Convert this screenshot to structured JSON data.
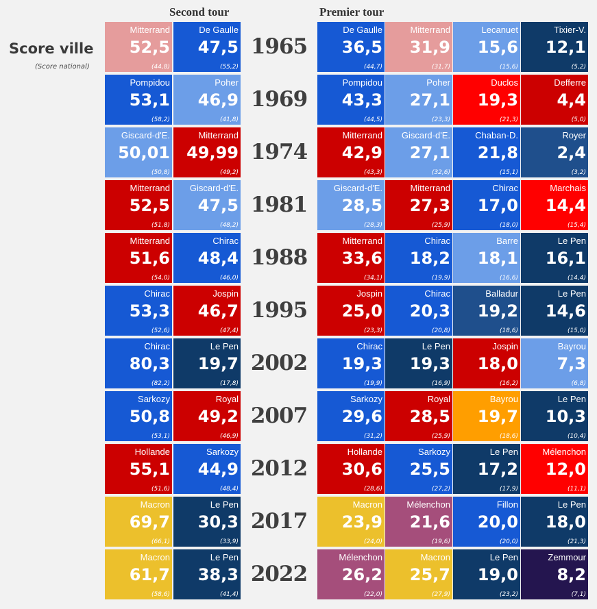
{
  "headers": {
    "second_round": "Second tour",
    "first_round": "Premier tour"
  },
  "legend": {
    "title": "Score ville",
    "subtitle": "(Score national)"
  },
  "colors": {
    "pink": "#e59c9c",
    "blue": "#1659d4",
    "lightblue": "#6c9ee8",
    "navy": "#0f3a68",
    "steelblue": "#1f4f8c",
    "darkred": "#cc0000",
    "brightred": "#ff0000",
    "orange": "#ff9e00",
    "yellow": "#ecc02c",
    "purple": "#a54e7b",
    "darkpurple": "#24154f"
  },
  "chart_data": {
    "type": "table",
    "title": "Score ville (Score national)",
    "rows": [
      {
        "year": "1965",
        "second_round": [
          {
            "name": "Mitterrand",
            "score": "52,5",
            "national": "(44,8)",
            "color": "pink"
          },
          {
            "name": "De Gaulle",
            "score": "47,5",
            "national": "(55,2)",
            "color": "blue"
          }
        ],
        "first_round": [
          {
            "name": "De Gaulle",
            "score": "36,5",
            "national": "(44,7)",
            "color": "blue"
          },
          {
            "name": "Mitterrand",
            "score": "31,9",
            "national": "(31,7)",
            "color": "pink"
          },
          {
            "name": "Lecanuet",
            "score": "15,6",
            "national": "(15,6)",
            "color": "lightblue"
          },
          {
            "name": "Tixier-V.",
            "score": "12,1",
            "national": "(5,2)",
            "color": "navy"
          }
        ]
      },
      {
        "year": "1969",
        "second_round": [
          {
            "name": "Pompidou",
            "score": "53,1",
            "national": "(58,2)",
            "color": "blue"
          },
          {
            "name": "Poher",
            "score": "46,9",
            "national": "(41,8)",
            "color": "lightblue"
          }
        ],
        "first_round": [
          {
            "name": "Pompidou",
            "score": "43,3",
            "national": "(44,5)",
            "color": "blue"
          },
          {
            "name": "Poher",
            "score": "27,1",
            "national": "(23,3)",
            "color": "lightblue"
          },
          {
            "name": "Duclos",
            "score": "19,3",
            "national": "(21,3)",
            "color": "brightred"
          },
          {
            "name": "Defferre",
            "score": "4,4",
            "national": "(5,0)",
            "color": "darkred"
          }
        ]
      },
      {
        "year": "1974",
        "second_round": [
          {
            "name": "Giscard-d'E.",
            "score": "50,01",
            "national": "(50,8)",
            "color": "lightblue"
          },
          {
            "name": "Mitterrand",
            "score": "49,99",
            "national": "(49,2)",
            "color": "darkred"
          }
        ],
        "first_round": [
          {
            "name": "Mitterrand",
            "score": "42,9",
            "national": "(43,3)",
            "color": "darkred"
          },
          {
            "name": "Giscard-d'E.",
            "score": "27,1",
            "national": "(32,6)",
            "color": "lightblue"
          },
          {
            "name": "Chaban-D.",
            "score": "21,8",
            "national": "(15,1)",
            "color": "blue"
          },
          {
            "name": "Royer",
            "score": "2,4",
            "national": "(3,2)",
            "color": "steelblue"
          }
        ]
      },
      {
        "year": "1981",
        "second_round": [
          {
            "name": "Mitterrand",
            "score": "52,5",
            "national": "(51,8)",
            "color": "darkred"
          },
          {
            "name": "Giscard-d'E.",
            "score": "47,5",
            "national": "(48,2)",
            "color": "lightblue"
          }
        ],
        "first_round": [
          {
            "name": "Giscard-d'E.",
            "score": "28,5",
            "national": "(28,3)",
            "color": "lightblue"
          },
          {
            "name": "Mitterrand",
            "score": "27,3",
            "national": "(25,9)",
            "color": "darkred"
          },
          {
            "name": "Chirac",
            "score": "17,0",
            "national": "(18,0)",
            "color": "blue"
          },
          {
            "name": "Marchais",
            "score": "14,4",
            "national": "(15,4)",
            "color": "brightred"
          }
        ]
      },
      {
        "year": "1988",
        "second_round": [
          {
            "name": "Mitterrand",
            "score": "51,6",
            "national": "(54,0)",
            "color": "darkred"
          },
          {
            "name": "Chirac",
            "score": "48,4",
            "national": "(46,0)",
            "color": "blue"
          }
        ],
        "first_round": [
          {
            "name": "Mitterrand",
            "score": "33,6",
            "national": "(34,1)",
            "color": "darkred"
          },
          {
            "name": "Chirac",
            "score": "18,2",
            "national": "(19,9)",
            "color": "blue"
          },
          {
            "name": "Barre",
            "score": "18,1",
            "national": "(16,6)",
            "color": "lightblue"
          },
          {
            "name": "Le Pen",
            "score": "16,1",
            "national": "(14,4)",
            "color": "navy"
          }
        ]
      },
      {
        "year": "1995",
        "second_round": [
          {
            "name": "Chirac",
            "score": "53,3",
            "national": "(52,6)",
            "color": "blue"
          },
          {
            "name": "Jospin",
            "score": "46,7",
            "national": "(47,4)",
            "color": "darkred"
          }
        ],
        "first_round": [
          {
            "name": "Jospin",
            "score": "25,0",
            "national": "(23,3)",
            "color": "darkred"
          },
          {
            "name": "Chirac",
            "score": "20,3",
            "national": "(20,8)",
            "color": "blue"
          },
          {
            "name": "Balladur",
            "score": "19,2",
            "national": "(18,6)",
            "color": "steelblue"
          },
          {
            "name": "Le Pen",
            "score": "14,6",
            "national": "(15,0)",
            "color": "navy"
          }
        ]
      },
      {
        "year": "2002",
        "second_round": [
          {
            "name": "Chirac",
            "score": "80,3",
            "national": "(82,2)",
            "color": "blue"
          },
          {
            "name": "Le Pen",
            "score": "19,7",
            "national": "(17,8)",
            "color": "navy"
          }
        ],
        "first_round": [
          {
            "name": "Chirac",
            "score": "19,3",
            "national": "(19,9)",
            "color": "blue"
          },
          {
            "name": "Le Pen",
            "score": "19,3",
            "national": "(16,9)",
            "color": "navy"
          },
          {
            "name": "Jospin",
            "score": "18,0",
            "national": "(16,2)",
            "color": "darkred"
          },
          {
            "name": "Bayrou",
            "score": "7,3",
            "national": "(6,8)",
            "color": "lightblue"
          }
        ]
      },
      {
        "year": "2007",
        "second_round": [
          {
            "name": "Sarkozy",
            "score": "50,8",
            "national": "(53,1)",
            "color": "blue"
          },
          {
            "name": "Royal",
            "score": "49,2",
            "national": "(46,9)",
            "color": "darkred"
          }
        ],
        "first_round": [
          {
            "name": "Sarkozy",
            "score": "29,6",
            "national": "(31,2)",
            "color": "blue"
          },
          {
            "name": "Royal",
            "score": "28,5",
            "national": "(25,9)",
            "color": "darkred"
          },
          {
            "name": "Bayrou",
            "score": "19,7",
            "national": "(18,6)",
            "color": "orange"
          },
          {
            "name": "Le Pen",
            "score": "10,3",
            "national": "(10,4)",
            "color": "navy"
          }
        ]
      },
      {
        "year": "2012",
        "second_round": [
          {
            "name": "Hollande",
            "score": "55,1",
            "national": "(51,6)",
            "color": "darkred"
          },
          {
            "name": "Sarkozy",
            "score": "44,9",
            "national": "(48,4)",
            "color": "blue"
          }
        ],
        "first_round": [
          {
            "name": "Hollande",
            "score": "30,6",
            "national": "(28,6)",
            "color": "darkred"
          },
          {
            "name": "Sarkozy",
            "score": "25,5",
            "national": "(27,2)",
            "color": "blue"
          },
          {
            "name": "Le Pen",
            "score": "17,2",
            "national": "(17,9)",
            "color": "navy"
          },
          {
            "name": "Mélenchon",
            "score": "12,0",
            "national": "(11,1)",
            "color": "brightred"
          }
        ]
      },
      {
        "year": "2017",
        "second_round": [
          {
            "name": "Macron",
            "score": "69,7",
            "national": "(66,1)",
            "color": "yellow"
          },
          {
            "name": "Le Pen",
            "score": "30,3",
            "national": "(33,9)",
            "color": "navy"
          }
        ],
        "first_round": [
          {
            "name": "Macron",
            "score": "23,9",
            "national": "(24,0)",
            "color": "yellow"
          },
          {
            "name": "Mélenchon",
            "score": "21,6",
            "national": "(19,6)",
            "color": "purple"
          },
          {
            "name": "Fillon",
            "score": "20,0",
            "national": "(20,0)",
            "color": "blue"
          },
          {
            "name": "Le Pen",
            "score": "18,0",
            "national": "(21,3)",
            "color": "navy"
          }
        ]
      },
      {
        "year": "2022",
        "second_round": [
          {
            "name": "Macron",
            "score": "61,7",
            "national": "(58,6)",
            "color": "yellow"
          },
          {
            "name": "Le Pen",
            "score": "38,3",
            "national": "(41,4)",
            "color": "navy"
          }
        ],
        "first_round": [
          {
            "name": "Mélenchon",
            "score": "26,2",
            "national": "(22,0)",
            "color": "purple"
          },
          {
            "name": "Macron",
            "score": "25,7",
            "national": "(27,9)",
            "color": "yellow"
          },
          {
            "name": "Le Pen",
            "score": "19,0",
            "national": "(23,2)",
            "color": "navy"
          },
          {
            "name": "Zemmour",
            "score": "8,2",
            "national": "(7,1)",
            "color": "darkpurple"
          }
        ]
      }
    ]
  }
}
